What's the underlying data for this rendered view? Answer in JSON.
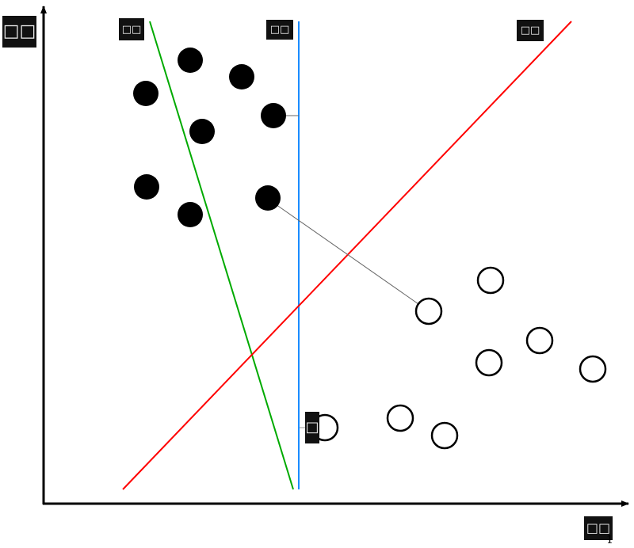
{
  "labels": {
    "y_axis": "□□",
    "green_line": "□□",
    "blue_line": "□□",
    "red_line": "□□",
    "x_axis": "□□",
    "margin": "□",
    "x_axis_subscript": "1"
  },
  "colors": {
    "green_line": "#00aa00",
    "blue_line": "#1a8cff",
    "red_line": "#ff0000",
    "axis": "#000000",
    "guide": "#666666"
  },
  "points": {
    "filled_count": 8,
    "open_count": 8
  }
}
